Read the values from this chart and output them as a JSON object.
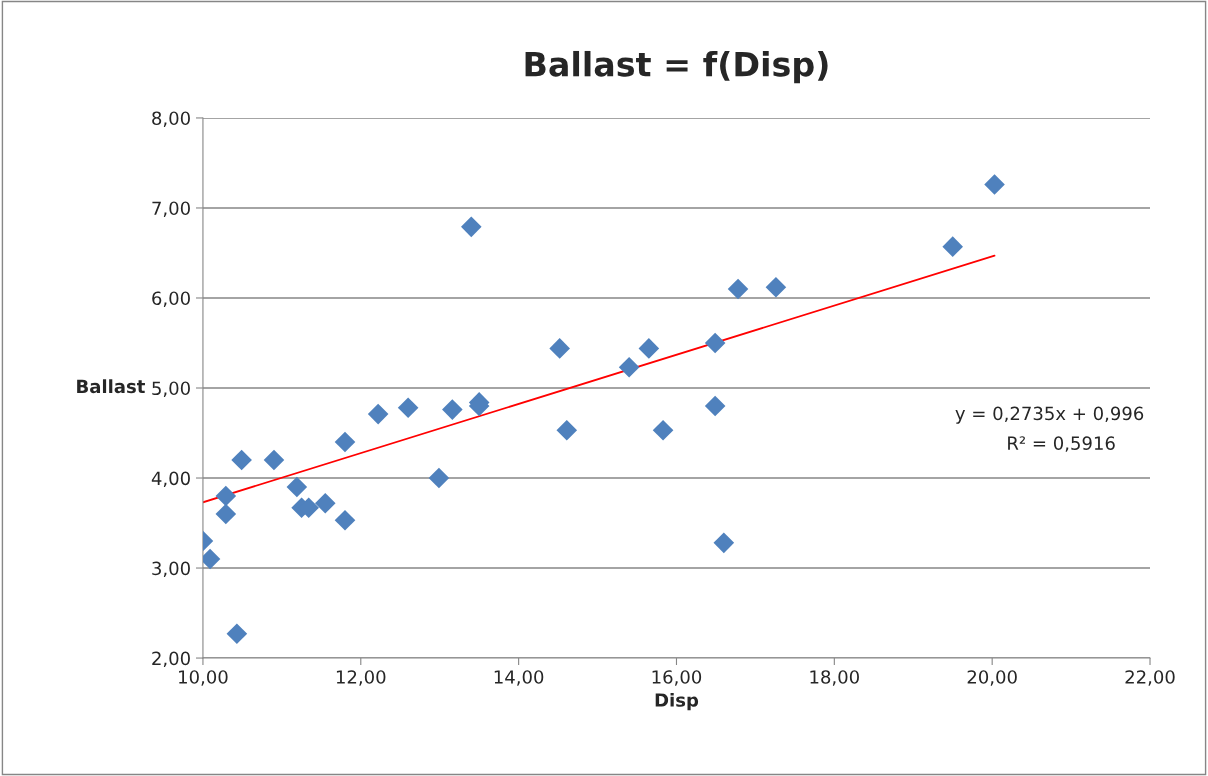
{
  "chart_data": {
    "type": "scatter",
    "title": "Ballast = f(Disp)",
    "xlabel": "Disp",
    "ylabel": "Ballast",
    "xlim": [
      10,
      22
    ],
    "ylim": [
      2,
      8
    ],
    "xticks": [
      {
        "value": 10,
        "label": "10,00"
      },
      {
        "value": 12,
        "label": "12,00"
      },
      {
        "value": 14,
        "label": "14,00"
      },
      {
        "value": 16,
        "label": "16,00"
      },
      {
        "value": 18,
        "label": "18,00"
      },
      {
        "value": 20,
        "label": "20,00"
      },
      {
        "value": 22,
        "label": "22,00"
      }
    ],
    "yticks": [
      {
        "value": 2,
        "label": "2,00"
      },
      {
        "value": 3,
        "label": "3,00"
      },
      {
        "value": 4,
        "label": "4,00"
      },
      {
        "value": 5,
        "label": "5,00"
      },
      {
        "value": 6,
        "label": "6,00"
      },
      {
        "value": 7,
        "label": "7,00"
      },
      {
        "value": 8,
        "label": "8,00"
      }
    ],
    "grid": "y",
    "series": [
      {
        "marker": "diamond",
        "color": "#4f81bd",
        "x": [
          10.0,
          10.09,
          10.29,
          10.29,
          10.43,
          10.49,
          10.9,
          11.19,
          11.25,
          11.34,
          11.55,
          11.8,
          11.8,
          12.22,
          12.6,
          12.99,
          13.16,
          13.4,
          13.5,
          13.5,
          14.52,
          14.61,
          15.4,
          15.65,
          15.83,
          16.49,
          16.49,
          16.6,
          16.78,
          17.26,
          19.5,
          20.03
        ],
        "values": [
          3.3,
          3.1,
          3.8,
          3.6,
          2.27,
          4.2,
          4.2,
          3.9,
          3.67,
          3.67,
          3.72,
          3.53,
          4.4,
          4.71,
          4.78,
          4.0,
          4.76,
          6.79,
          4.84,
          4.8,
          5.44,
          4.53,
          5.23,
          5.44,
          4.53,
          5.5,
          4.8,
          3.28,
          6.1,
          6.12,
          6.57,
          7.26
        ]
      },
      {
        "type": "line",
        "marker": "none",
        "color": "#ff0000",
        "x": [
          10.0,
          20.03
        ],
        "values": [
          3.73,
          6.47
        ]
      }
    ],
    "annotations": [
      "y = 0,2735x + 0,996",
      "R² = 0,5916"
    ]
  }
}
